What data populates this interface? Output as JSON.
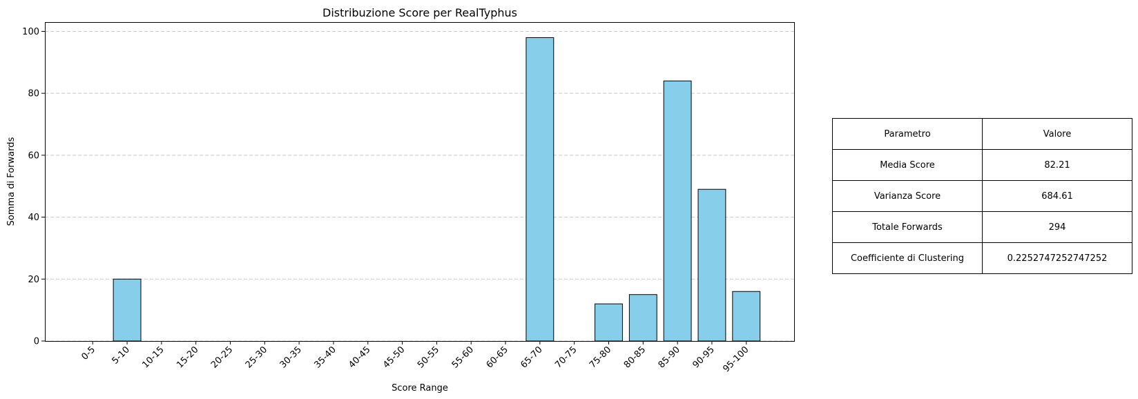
{
  "chart_data": {
    "type": "bar",
    "title": "Distribuzione Score per RealTyphus",
    "xlabel": "Score Range",
    "ylabel": "Somma di Forwards",
    "categories": [
      "0-5",
      "5-10",
      "10-15",
      "15-20",
      "20-25",
      "25-30",
      "30-35",
      "35-40",
      "40-45",
      "45-50",
      "50-55",
      "55-60",
      "60-65",
      "65-70",
      "70-75",
      "75-80",
      "80-85",
      "85-90",
      "90-95",
      "95-100"
    ],
    "values": [
      0,
      20,
      0,
      0,
      0,
      0,
      0,
      0,
      0,
      0,
      0,
      0,
      0,
      98,
      0,
      12,
      15,
      84,
      49,
      16
    ],
    "ylim": [
      0,
      103
    ],
    "yticks": [
      0,
      20,
      40,
      60,
      80,
      100
    ],
    "grid": "y-dashed",
    "bar_color": "#87ceeb",
    "edge_color": "#000000",
    "grid_color": "#c8c8c8"
  },
  "stats_table": {
    "header": [
      "Parametro",
      "Valore"
    ],
    "rows": [
      [
        "Media Score",
        "82.21"
      ],
      [
        "Varianza Score",
        "684.61"
      ],
      [
        "Totale Forwards",
        "294"
      ],
      [
        "Coefficiente di Clustering",
        "0.2252747252747252"
      ]
    ]
  }
}
